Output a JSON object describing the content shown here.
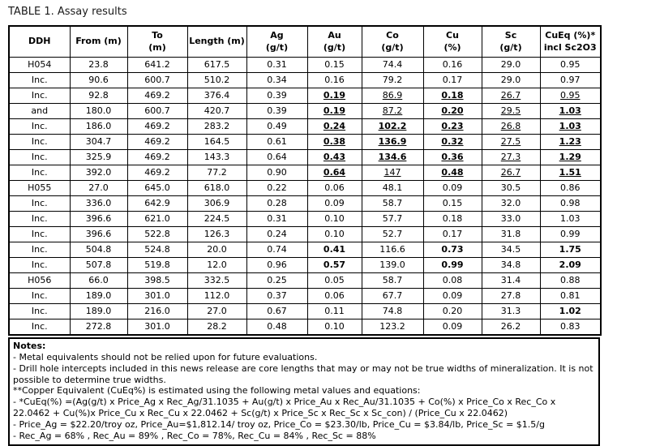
{
  "title": "TABLE 1. Assay results",
  "colors": {
    "text": "#000000",
    "border": "#000000",
    "background": "#ffffff"
  },
  "table": {
    "columns": [
      {
        "lines": [
          "DDH"
        ]
      },
      {
        "lines": [
          "From (m)"
        ]
      },
      {
        "lines": [
          "To",
          "(m)"
        ]
      },
      {
        "lines": [
          "Length (m)"
        ]
      },
      {
        "lines": [
          "Ag",
          "(g/t)"
        ]
      },
      {
        "lines": [
          "Au",
          "(g/t)"
        ]
      },
      {
        "lines": [
          "Co",
          "(g/t)"
        ]
      },
      {
        "lines": [
          "Cu",
          "(%)"
        ]
      },
      {
        "lines": [
          "Sc",
          "(g/t)"
        ]
      },
      {
        "lines": [
          "CuEq (%)*",
          "incl Sc2O3"
        ]
      }
    ],
    "rows": [
      {
        "ddh": "H054",
        "ddh_align": "left",
        "values": [
          "23.8",
          "641.2",
          "617.5",
          "0.31",
          "0.15",
          "74.4",
          "0.16",
          "29.0",
          "0.95"
        ],
        "styles": [
          "",
          "",
          "",
          "",
          "",
          "",
          "",
          "",
          ""
        ]
      },
      {
        "ddh": "Inc.",
        "ddh_align": "right",
        "values": [
          "90.6",
          "600.7",
          "510.2",
          "0.34",
          "0.16",
          "79.2",
          "0.17",
          "29.0",
          "0.97"
        ],
        "styles": [
          "",
          "",
          "",
          "",
          "",
          "",
          "",
          "",
          ""
        ]
      },
      {
        "ddh": "Inc.",
        "ddh_align": "right",
        "values": [
          "92.8",
          "469.2",
          "376.4",
          "0.39",
          "0.19",
          "86.9",
          "0.18",
          "26.7",
          "0.95"
        ],
        "styles": [
          "",
          "",
          "",
          "",
          "bu",
          "u",
          "bu",
          "u",
          "u"
        ]
      },
      {
        "ddh": "and",
        "ddh_align": "left",
        "values": [
          "180.0",
          "600.7",
          "420.7",
          "0.39",
          "0.19",
          "87.2",
          "0.20",
          "29.5",
          "1.03"
        ],
        "styles": [
          "",
          "",
          "",
          "",
          "bu",
          "u",
          "bu",
          "u",
          "bu"
        ]
      },
      {
        "ddh": "Inc.",
        "ddh_align": "right",
        "values": [
          "186.0",
          "469.2",
          "283.2",
          "0.49",
          "0.24",
          "102.2",
          "0.23",
          "26.8",
          "1.03"
        ],
        "styles": [
          "",
          "",
          "",
          "",
          "bu",
          "bu",
          "bu",
          "u",
          "bu"
        ]
      },
      {
        "ddh": "Inc.",
        "ddh_align": "right",
        "values": [
          "304.7",
          "469.2",
          "164.5",
          "0.61",
          "0.38",
          "136.9",
          "0.32",
          "27.5",
          "1.23"
        ],
        "styles": [
          "",
          "",
          "",
          "",
          "bu",
          "bu",
          "bu",
          "u",
          "bu"
        ]
      },
      {
        "ddh": "Inc.",
        "ddh_align": "right",
        "values": [
          "325.9",
          "469.2",
          "143.3",
          "0.64",
          "0.43",
          "134.6",
          "0.36",
          "27.3",
          "1.29"
        ],
        "styles": [
          "",
          "",
          "",
          "",
          "bu",
          "bu",
          "bu",
          "u",
          "bu"
        ]
      },
      {
        "ddh": "Inc.",
        "ddh_align": "right",
        "values": [
          "392.0",
          "469.2",
          "77.2",
          "0.90",
          "0.64",
          "147",
          "0.48",
          "26.7",
          "1.51"
        ],
        "styles": [
          "",
          "",
          "",
          "",
          "bu",
          "u",
          "bu",
          "u",
          "bu"
        ]
      },
      {
        "ddh": "H055",
        "ddh_align": "left",
        "values": [
          "27.0",
          "645.0",
          "618.0",
          "0.22",
          "0.06",
          "48.1",
          "0.09",
          "30.5",
          "0.86"
        ],
        "styles": [
          "",
          "",
          "",
          "",
          "",
          "",
          "",
          "",
          ""
        ]
      },
      {
        "ddh": "Inc.",
        "ddh_align": "right",
        "values": [
          "336.0",
          "642.9",
          "306.9",
          "0.28",
          "0.09",
          "58.7",
          "0.15",
          "32.0",
          "0.98"
        ],
        "styles": [
          "",
          "",
          "",
          "",
          "",
          "",
          "",
          "",
          ""
        ]
      },
      {
        "ddh": "Inc.",
        "ddh_align": "right",
        "values": [
          "396.6",
          "621.0",
          "224.5",
          "0.31",
          "0.10",
          "57.7",
          "0.18",
          "33.0",
          "1.03"
        ],
        "styles": [
          "",
          "",
          "",
          "",
          "",
          "",
          "",
          "",
          ""
        ]
      },
      {
        "ddh": "Inc.",
        "ddh_align": "right",
        "values": [
          "396.6",
          "522.8",
          "126.3",
          "0.24",
          "0.10",
          "52.7",
          "0.17",
          "31.8",
          "0.99"
        ],
        "styles": [
          "",
          "",
          "",
          "",
          "",
          "",
          "",
          "",
          ""
        ]
      },
      {
        "ddh": "Inc.",
        "ddh_align": "right",
        "values": [
          "504.8",
          "524.8",
          "20.0",
          "0.74",
          "0.41",
          "116.6",
          "0.73",
          "34.5",
          "1.75"
        ],
        "styles": [
          "",
          "",
          "",
          "",
          "b",
          "",
          "b",
          "",
          "b"
        ]
      },
      {
        "ddh": "Inc.",
        "ddh_align": "right",
        "values": [
          "507.8",
          "519.8",
          "12.0",
          "0.96",
          "0.57",
          "139.0",
          "0.99",
          "34.8",
          "2.09"
        ],
        "styles": [
          "",
          "",
          "",
          "",
          "b",
          "",
          "b",
          "",
          "b"
        ]
      },
      {
        "ddh": "H056",
        "ddh_align": "left",
        "values": [
          "66.0",
          "398.5",
          "332.5",
          "0.25",
          "0.05",
          "58.7",
          "0.08",
          "31.4",
          "0.88"
        ],
        "styles": [
          "",
          "",
          "",
          "",
          "",
          "",
          "",
          "",
          ""
        ]
      },
      {
        "ddh": "Inc.",
        "ddh_align": "right",
        "values": [
          "189.0",
          "301.0",
          "112.0",
          "0.37",
          "0.06",
          "67.7",
          "0.09",
          "27.8",
          "0.81"
        ],
        "styles": [
          "",
          "",
          "",
          "",
          "",
          "",
          "",
          "",
          ""
        ]
      },
      {
        "ddh": "Inc.",
        "ddh_align": "right",
        "values": [
          "189.0",
          "216.0",
          "27.0",
          "0.67",
          "0.11",
          "74.8",
          "0.20",
          "31.3",
          "1.02"
        ],
        "styles": [
          "",
          "",
          "",
          "",
          "",
          "",
          "",
          "",
          "b"
        ]
      },
      {
        "ddh": "Inc.",
        "ddh_align": "right",
        "values": [
          "272.8",
          "301.0",
          "28.2",
          "0.48",
          "0.10",
          "123.2",
          "0.09",
          "26.2",
          "0.83"
        ],
        "styles": [
          "",
          "",
          "",
          "",
          "",
          "",
          "",
          "",
          ""
        ]
      }
    ]
  },
  "notes": {
    "heading": "Notes:",
    "lines": [
      "- Metal equivalents should not be relied upon for future evaluations.",
      "- Drill hole intercepts included in this news release are core lengths that may or may not be true widths of mineralization. It is not possible to determine true widths.",
      "**Copper Equivalent (CuEq%) is estimated using the following metal values and equations:",
      "- *CuEq(%) =(Ag(g/t) x Price_Ag x Rec_Ag/31.1035 + Au(g/t) x Price_Au x Rec_Au/31.1035 + Co(%) x Price_Co x Rec_Co x 22.0462 + Cu(%)x Price_Cu x Rec_Cu x 22.0462 + Sc(g/t) x Price_Sc x Rec_Sc x Sc_con) / (Price_Cu x 22.0462)",
      "- Price_Ag = $22.20/troy oz, Price_Au=$1,812.14/ troy oz, Price_Co = $23.30/lb, Price_Cu = $3.84/lb, Price_Sc = $1.5/g",
      "- Rec_Ag = 68% , Rec_Au = 89% , Rec_Co = 78%, Rec_Cu = 84% , Rec_Sc = 88%"
    ]
  }
}
